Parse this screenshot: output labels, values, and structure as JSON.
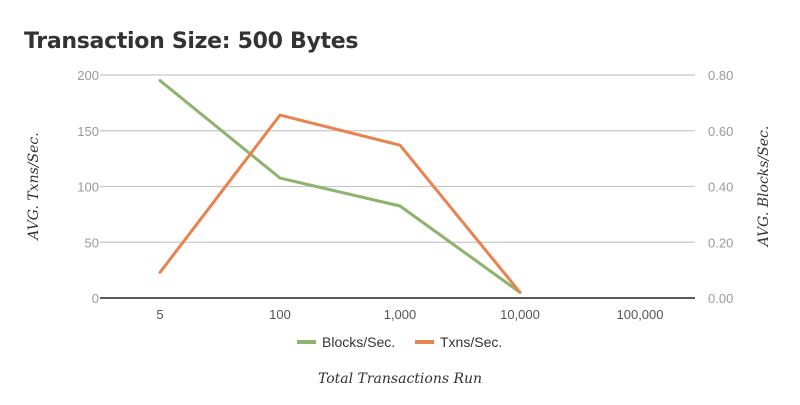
{
  "chart_data": {
    "type": "line",
    "title": "Transaction Size: 500 Bytes",
    "xlabel": "Total Transactions Run",
    "ylabel_left": "AVG. Txns/Sec.",
    "ylabel_right": "AVG. Blocks/Sec.",
    "categories": [
      "5",
      "100",
      "1,000",
      "10,000",
      "100,000"
    ],
    "y_left": {
      "min": 0,
      "max": 200,
      "ticks": [
        "0",
        "50",
        "100",
        "150",
        "200"
      ]
    },
    "y_right": {
      "min": 0,
      "max": 0.8,
      "ticks": [
        "0.00",
        "0.20",
        "0.40",
        "0.60",
        "0.80"
      ]
    },
    "grid": true,
    "legend_position": "bottom",
    "series": [
      {
        "name": "Blocks/Sec.",
        "axis": "right",
        "color": "#8db36d",
        "values": [
          0.78,
          0.43,
          0.33,
          0.02,
          null
        ]
      },
      {
        "name": "Txns/Sec.",
        "axis": "left",
        "color": "#e8834f",
        "values": [
          23,
          164,
          137,
          5,
          null
        ]
      }
    ]
  }
}
